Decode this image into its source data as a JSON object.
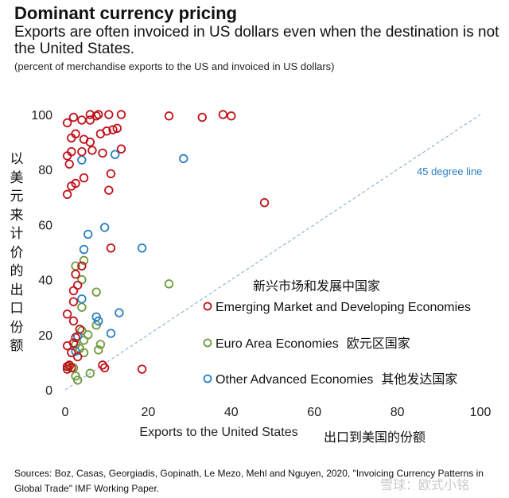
{
  "header": {
    "title": "Dominant currency pricing",
    "subtitle": "Exports are often invoiced in US dollars even when the destination is not the United States.",
    "note": "(percent of merchandise exports to the US and invoiced in US dollars)"
  },
  "y_axis_label_cn": [
    "以",
    "美",
    "元",
    "来",
    "计",
    "价",
    "的",
    "出",
    "口",
    "份",
    "额"
  ],
  "x_axis_label_cn": "出口到美国的份额",
  "legend_title_cn": "新兴市场和发展中国家",
  "source": "Sources: Boz, Casas, Georgiadis, Gopinath, Le Mezo, Mehl and Nguyen, 2020, \"Invoicing Currency Patterns in Global Trade\" IMF Working Paper.",
  "watermark": "雪球：欧式小铭",
  "colors": {
    "emerging": "#c0121b",
    "euro": "#6f9a3a",
    "advanced": "#2b7fc4",
    "diagonal": "#8fb5d8"
  },
  "chart_data": {
    "type": "scatter",
    "xlabel": "Exports to the United States",
    "ylabel": "",
    "xlim": [
      0,
      100
    ],
    "ylim": [
      0,
      100
    ],
    "xticks": [
      0,
      20,
      40,
      60,
      80,
      100
    ],
    "yticks": [
      0,
      20,
      40,
      60,
      80,
      100
    ],
    "diagonal_label": "45 degree line",
    "series": [
      {
        "name": "Emerging Market and Developing Economies",
        "label_cn": "",
        "color": "#c0121b",
        "points": [
          [
            0.5,
            97
          ],
          [
            2,
            99
          ],
          [
            4,
            98
          ],
          [
            6,
            100
          ],
          [
            6,
            98
          ],
          [
            7.5,
            99.5
          ],
          [
            8,
            100
          ],
          [
            10.5,
            100
          ],
          [
            13.5,
            100
          ],
          [
            25,
            99.5
          ],
          [
            33,
            99
          ],
          [
            38,
            100
          ],
          [
            40,
            99.5
          ],
          [
            2.5,
            93
          ],
          [
            4.5,
            91
          ],
          [
            6,
            90
          ],
          [
            8.5,
            93
          ],
          [
            10,
            94
          ],
          [
            11.5,
            94.5
          ],
          [
            12.5,
            95
          ],
          [
            1.5,
            91.5
          ],
          [
            1.5,
            86.5
          ],
          [
            0.5,
            85
          ],
          [
            1,
            82
          ],
          [
            4,
            86.5
          ],
          [
            6.5,
            87
          ],
          [
            9,
            86
          ],
          [
            13.5,
            87.5
          ],
          [
            2.5,
            75
          ],
          [
            1.5,
            74
          ],
          [
            4.5,
            77
          ],
          [
            11,
            78.5
          ],
          [
            0.5,
            71
          ],
          [
            10.5,
            72.5
          ],
          [
            48,
            68
          ],
          [
            11,
            51.5
          ],
          [
            2.5,
            42
          ],
          [
            4,
            45
          ],
          [
            3,
            38
          ],
          [
            2,
            36
          ],
          [
            2,
            32
          ],
          [
            0.5,
            27.5
          ],
          [
            2,
            25
          ],
          [
            3.5,
            22
          ],
          [
            2.5,
            19
          ],
          [
            2,
            17
          ],
          [
            0.5,
            16
          ],
          [
            1.5,
            13.5
          ],
          [
            3,
            12
          ],
          [
            0.5,
            8.5
          ],
          [
            1,
            9
          ],
          [
            9,
            9
          ],
          [
            9.5,
            8
          ],
          [
            18.5,
            7.5
          ],
          [
            1.5,
            8
          ],
          [
            0.5,
            7.5
          ]
        ]
      },
      {
        "name": "Euro Area Economies",
        "label_cn": "欧元区国家",
        "color": "#6f9a3a",
        "points": [
          [
            2.5,
            45
          ],
          [
            4.5,
            47
          ],
          [
            4,
            40
          ],
          [
            7.5,
            35.5
          ],
          [
            4,
            30
          ],
          [
            25,
            38.5
          ],
          [
            4,
            21.5
          ],
          [
            4.5,
            18
          ],
          [
            5.5,
            20
          ],
          [
            7.5,
            23.5
          ],
          [
            8.5,
            16.5
          ],
          [
            8,
            14.5
          ],
          [
            4.5,
            13.5
          ],
          [
            3.5,
            15
          ],
          [
            2.5,
            16.5
          ],
          [
            2,
            8
          ],
          [
            1,
            8.5
          ],
          [
            2.5,
            5
          ],
          [
            3,
            3.5
          ],
          [
            6,
            6
          ]
        ]
      },
      {
        "name": "Other Advanced Economies",
        "label_cn": "其他发达国家",
        "color": "#2b7fc4",
        "points": [
          [
            4,
            83.5
          ],
          [
            12,
            85.5
          ],
          [
            28.5,
            84
          ],
          [
            9.5,
            59
          ],
          [
            5.5,
            56.5
          ],
          [
            4.5,
            51
          ],
          [
            18.5,
            51.5
          ],
          [
            4,
            33
          ],
          [
            7.5,
            26.5
          ],
          [
            8,
            25
          ],
          [
            13,
            28
          ],
          [
            11,
            20.5
          ],
          [
            3,
            19.5
          ],
          [
            2.5,
            14
          ]
        ]
      }
    ]
  }
}
